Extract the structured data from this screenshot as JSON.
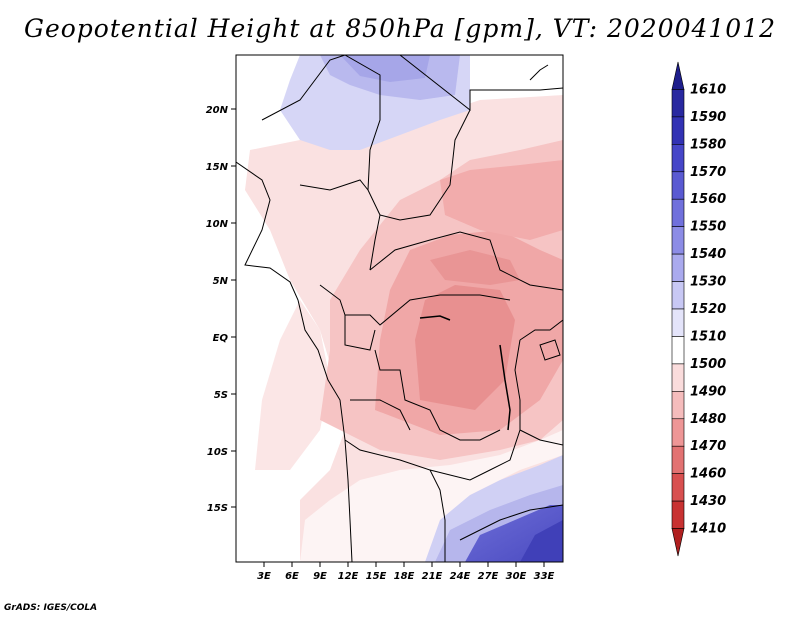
{
  "title": "Geopotential Height at 850hPa [gpm], VT: 2020041012",
  "credit": "GrADS: IGES/COLA",
  "map": {
    "lat_labels": [
      "20N",
      "15N",
      "10N",
      "5N",
      "EQ",
      "5S",
      "10S",
      "15S"
    ],
    "lon_labels": [
      "3E",
      "6E",
      "9E",
      "12E",
      "15E",
      "18E",
      "21E",
      "24E",
      "27E",
      "30E",
      "33E"
    ]
  },
  "colorbar": {
    "labels": [
      "1610",
      "1590",
      "1580",
      "1570",
      "1560",
      "1550",
      "1540",
      "1530",
      "1520",
      "1510",
      "1500",
      "1490",
      "1480",
      "1470",
      "1460",
      "1430",
      "1410"
    ],
    "colors": [
      "#1e1e8c",
      "#2828a0",
      "#3232b4",
      "#4646c8",
      "#5a5ad2",
      "#7070dc",
      "#8c8ce6",
      "#aaaaee",
      "#c8c8f4",
      "#e4e4fa",
      "#ffffff",
      "#fadcdc",
      "#f5bcbc",
      "#ee9696",
      "#e27272",
      "#d85050",
      "#c83232",
      "#b02020"
    ]
  }
}
